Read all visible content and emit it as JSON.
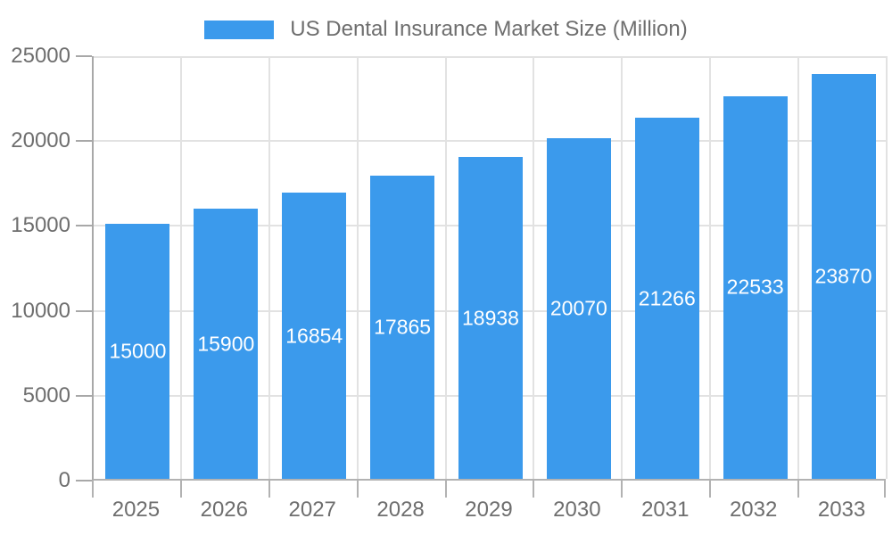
{
  "legend": {
    "label": "US Dental Insurance Market Size (Million)"
  },
  "chart_data": {
    "type": "bar",
    "title": "US Dental Insurance Market Size (Million)",
    "categories": [
      "2025",
      "2026",
      "2027",
      "2028",
      "2029",
      "2030",
      "2031",
      "2032",
      "2033"
    ],
    "values": [
      15000,
      15900,
      16854,
      17865,
      18938,
      20070,
      21266,
      22533,
      23870
    ],
    "value_labels": [
      "15000",
      "15900",
      "16854",
      "17865",
      "18938",
      "20070",
      "21266",
      "22533",
      "23870"
    ],
    "xlabel": "",
    "ylabel": "",
    "ylim": [
      0,
      25000
    ],
    "yticks": [
      0,
      5000,
      10000,
      15000,
      20000,
      25000
    ],
    "ytick_labels": [
      "0",
      "5000",
      "10000",
      "15000",
      "20000",
      "25000"
    ],
    "grid": true,
    "legend_position": "top",
    "bar_color": "#3b9aec",
    "bar_label_color": "#ffffff",
    "axis_text_color": "#6e6e6e",
    "grid_color": "#e2e2e2",
    "axis_line_color": "#a8a8a8"
  }
}
